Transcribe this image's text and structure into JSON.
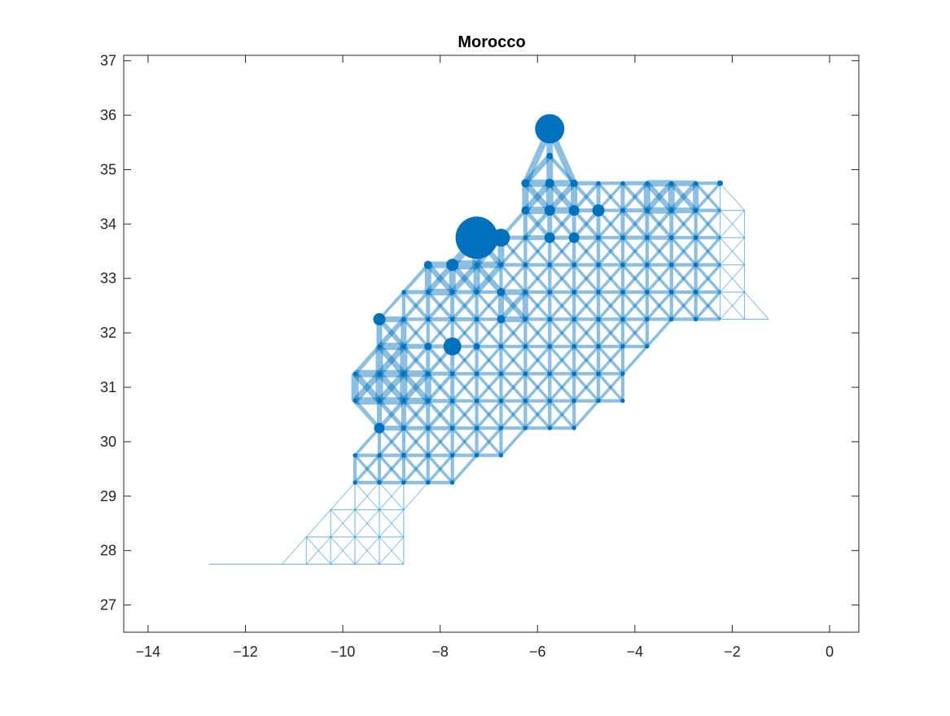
{
  "chart_data": {
    "type": "scatter",
    "title": "Morocco",
    "xlabel": "",
    "ylabel": "",
    "xlim": [
      -14.5,
      0.6
    ],
    "ylim": [
      26.5,
      37.1
    ],
    "xticks": [
      -14,
      -12,
      -10,
      -8,
      -6,
      -4,
      -2,
      0
    ],
    "yticks": [
      27,
      28,
      29,
      30,
      31,
      32,
      33,
      34,
      35,
      36,
      37
    ],
    "grid": false,
    "legend": "none",
    "color": "#0072BD",
    "grid_spacing": 0.5,
    "region_rows": [
      {
        "lat": 35.25,
        "lon_min": -5.75,
        "lon_max": -5.75
      },
      {
        "lat": 34.75,
        "lon_min": -6.25,
        "lon_max": -2.25
      },
      {
        "lat": 34.25,
        "lon_min": -6.25,
        "lon_max": -1.75
      },
      {
        "lat": 33.75,
        "lon_min": -7.25,
        "lon_max": -1.75
      },
      {
        "lat": 33.25,
        "lon_min": -8.25,
        "lon_max": -1.75
      },
      {
        "lat": 32.75,
        "lon_min": -8.75,
        "lon_max": -1.75
      },
      {
        "lat": 32.25,
        "lon_min": -9.25,
        "lon_max": -1.25
      },
      {
        "lat": 31.75,
        "lon_min": -9.25,
        "lon_max": -3.75
      },
      {
        "lat": 31.25,
        "lon_min": -9.75,
        "lon_max": -4.25
      },
      {
        "lat": 30.75,
        "lon_min": -9.75,
        "lon_max": -4.25
      },
      {
        "lat": 30.25,
        "lon_min": -9.25,
        "lon_max": -5.25
      },
      {
        "lat": 29.75,
        "lon_min": -9.75,
        "lon_max": -6.75
      },
      {
        "lat": 29.25,
        "lon_min": -9.75,
        "lon_max": -7.75
      },
      {
        "lat": 28.75,
        "lon_min": -10.25,
        "lon_max": -8.75
      },
      {
        "lat": 28.25,
        "lon_min": -10.75,
        "lon_max": -8.75
      },
      {
        "lat": 27.75,
        "lon_min": -11.75,
        "lon_max": -8.75
      },
      {
        "lat": 27.75,
        "lon_min": -12.75,
        "lon_max": -12.25
      }
    ],
    "nodes": [
      {
        "lon": -5.75,
        "lat": 35.75,
        "size": 18
      },
      {
        "lon": -7.25,
        "lat": 33.75,
        "size": 26
      },
      {
        "lon": -6.75,
        "lat": 33.75,
        "size": 11
      },
      {
        "lon": -7.75,
        "lat": 31.75,
        "size": 11
      },
      {
        "lon": -9.25,
        "lat": 32.25,
        "size": 7.5
      },
      {
        "lon": -9.25,
        "lat": 30.25,
        "size": 6.5
      },
      {
        "lon": -7.75,
        "lat": 33.25,
        "size": 7.5
      },
      {
        "lon": -8.25,
        "lat": 33.25,
        "size": 5
      },
      {
        "lon": -5.75,
        "lat": 34.25,
        "size": 6.5
      },
      {
        "lon": -5.25,
        "lat": 34.25,
        "size": 6.5
      },
      {
        "lon": -4.75,
        "lat": 34.25,
        "size": 7.5
      },
      {
        "lon": -6.25,
        "lat": 34.25,
        "size": 5
      },
      {
        "lon": -5.75,
        "lat": 33.75,
        "size": 6.5
      },
      {
        "lon": -5.25,
        "lat": 33.75,
        "size": 6.5
      },
      {
        "lon": -5.75,
        "lat": 34.75,
        "size": 5.5
      },
      {
        "lon": -6.25,
        "lat": 34.75,
        "size": 5
      },
      {
        "lon": -5.25,
        "lat": 34.75,
        "size": 4.5
      },
      {
        "lon": -5.75,
        "lat": 35.25,
        "size": 4
      },
      {
        "lon": -6.75,
        "lat": 32.75,
        "size": 5
      },
      {
        "lon": -6.75,
        "lat": 32.25,
        "size": 5
      },
      {
        "lon": -7.25,
        "lat": 31.75,
        "size": 4
      },
      {
        "lon": -8.25,
        "lat": 31.75,
        "size": 4.5
      },
      {
        "lon": -2.25,
        "lat": 34.75,
        "size": 3.5
      }
    ],
    "edge_weights": [
      {
        "lon": -9.5,
        "lat": 31.0,
        "w": 9
      },
      {
        "lon": -9.0,
        "lat": 31.0,
        "w": 9
      },
      {
        "lon": -8.5,
        "lat": 31.0,
        "w": 8
      },
      {
        "lon": -9.0,
        "lat": 31.5,
        "w": 9
      },
      {
        "lon": -7.5,
        "lat": 33.5,
        "w": 11
      },
      {
        "lon": -8.0,
        "lat": 33.0,
        "w": 8
      },
      {
        "lon": -6.5,
        "lat": 34.5,
        "w": 8
      },
      {
        "lon": -6.0,
        "lat": 34.5,
        "w": 9
      },
      {
        "lon": -5.5,
        "lat": 34.5,
        "w": 8
      },
      {
        "lon": -6.0,
        "lat": 35.0,
        "w": 8
      },
      {
        "lon": -3.5,
        "lat": 34.5,
        "w": 8
      },
      {
        "lon": -3.0,
        "lat": 34.5,
        "w": 7
      },
      {
        "lon": -9.0,
        "lat": 32.0,
        "w": 7
      },
      {
        "lon": -6.5,
        "lat": 32.5,
        "w": 7
      }
    ],
    "edge_taper_start_lon": -2.5
  }
}
